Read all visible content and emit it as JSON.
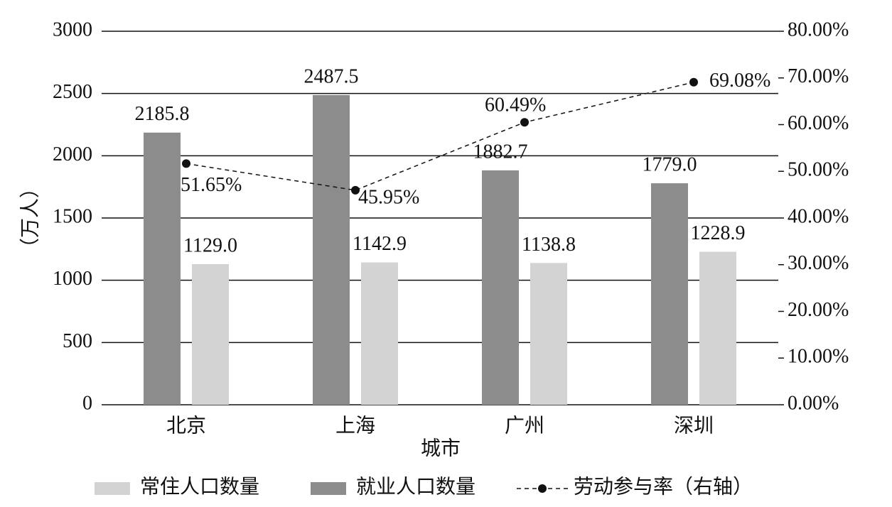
{
  "chart_data": {
    "type": "bar",
    "x_label": "城市",
    "y_label": "（万人）",
    "categories": [
      "北京",
      "上海",
      "广州",
      "深圳"
    ],
    "series": [
      {
        "name": "常住人口数量",
        "color": "#d3d3d3",
        "values": [
          1129.0,
          1142.9,
          1138.8,
          1228.9
        ],
        "value_labels": [
          "1129.0",
          "1142.9",
          "1138.8",
          "1228.9"
        ]
      },
      {
        "name": "就业人口数量",
        "color": "#8c8c8c",
        "values": [
          2185.8,
          2487.5,
          1882.7,
          1779.0
        ],
        "value_labels": [
          "2185.8",
          "2487.5",
          "1882.7",
          "1779.0"
        ]
      },
      {
        "name": "劳动参与率（右轴）",
        "type": "line",
        "axis": "y2",
        "color": "#111111",
        "values": [
          51.65,
          45.95,
          60.49,
          69.08
        ],
        "value_labels": [
          "51.65%",
          "45.95%",
          "60.49%",
          "69.08%"
        ]
      }
    ],
    "ylim": [
      0,
      3000
    ],
    "yticks": [
      0,
      500,
      1000,
      1500,
      2000,
      2500,
      3000
    ],
    "y2lim": [
      0,
      80
    ],
    "y2ticks": [
      {
        "value": 0,
        "label": "0.00%"
      },
      {
        "value": 10,
        "label": "10.00%"
      },
      {
        "value": 20,
        "label": "20.00%"
      },
      {
        "value": 30,
        "label": "30.00%"
      },
      {
        "value": 40,
        "label": "40.00%"
      },
      {
        "value": 50,
        "label": "50.00%"
      },
      {
        "value": 60,
        "label": "60.00%"
      },
      {
        "value": 70,
        "label": "70.00%"
      },
      {
        "value": 80,
        "label": "80.00%"
      }
    ],
    "grid": true,
    "legend": "bottom"
  }
}
